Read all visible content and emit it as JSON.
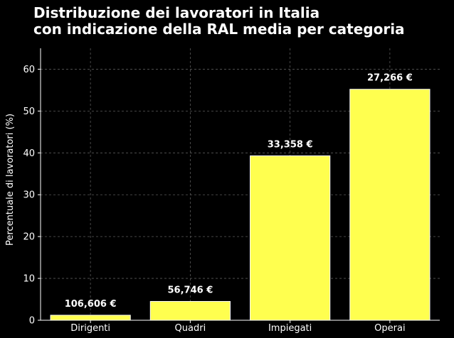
{
  "chart_data": {
    "type": "bar",
    "title": [
      "Distribuzione dei lavoratori in Italia",
      "con indicazione della RAL media per categoria"
    ],
    "xlabel": "",
    "ylabel": "Percentuale di lavoratori (%)",
    "categories": [
      "Dirigenti",
      "Quadri",
      "Impiegati",
      "Operai"
    ],
    "values": [
      1.2,
      4.5,
      39.3,
      55.2
    ],
    "bar_labels": [
      "106,606 €",
      "56,746 €",
      "33,358 €",
      "27,266 €"
    ],
    "ylim": [
      0,
      65
    ],
    "yticks": [
      0,
      10,
      20,
      30,
      40,
      50,
      60
    ],
    "grid": true,
    "colors": {
      "background": "#000000",
      "bar": "#ffff4f",
      "bar_edge": "#ffffff",
      "text": "#ffffff",
      "grid": "#5a5a5a"
    }
  }
}
